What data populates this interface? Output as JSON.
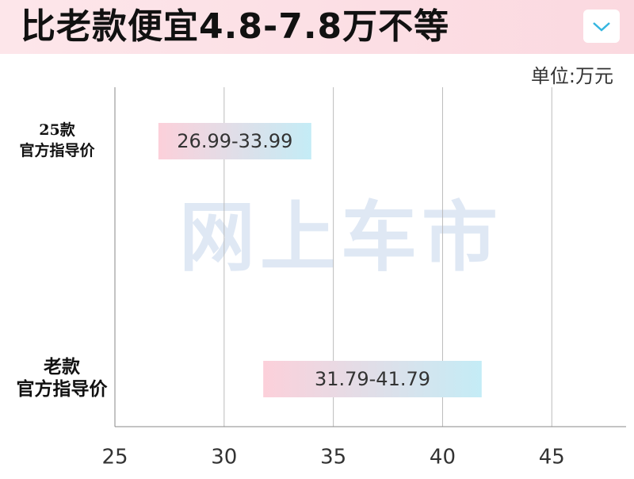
{
  "chart_data": {
    "type": "range-bar",
    "title": "比老款便宜4.8-7.8万不等",
    "unit_label": "单位:万元",
    "watermark": "网上车市",
    "categories": [
      [
        "25款",
        "官方指导价"
      ],
      [
        "老款",
        "官方指导价"
      ]
    ],
    "series": [
      {
        "values": [
          [
            26.99,
            33.99
          ],
          [
            31.79,
            41.79
          ]
        ],
        "value_labels": [
          "26.99-33.99",
          "31.79-41.79"
        ],
        "colors": [
          "#fcd0da",
          "#c4ecf6"
        ]
      }
    ],
    "xlim": [
      25,
      48.4
    ],
    "xticks": [
      25,
      30,
      35,
      40,
      45
    ],
    "grid": true
  }
}
